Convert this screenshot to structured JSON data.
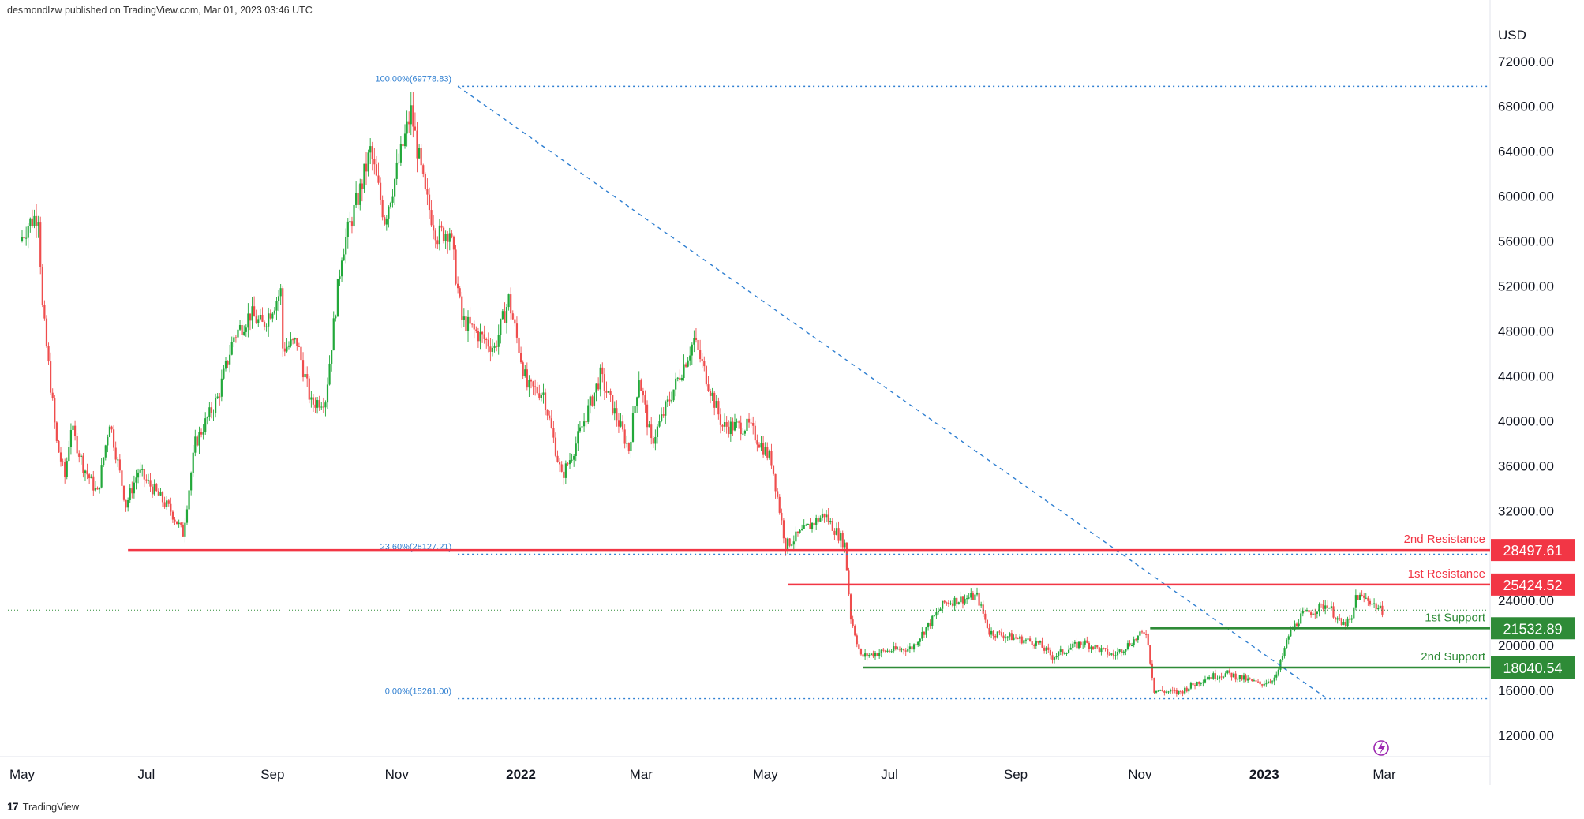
{
  "header": {
    "published_note": "desmondlzw published on TradingView.com, Mar 01, 2023 03:46 UTC"
  },
  "footer": {
    "brand": "TradingView",
    "logo_text": "17"
  },
  "colors": {
    "up": "#22a83a",
    "down": "#ef4d4d",
    "resistance": "#f23645",
    "support": "#2e8b37",
    "fib": "#2f7fd1",
    "last_price_line": "#2e8b37"
  },
  "chart_data": {
    "type": "candlestick",
    "currency": "USD",
    "y_axis": {
      "min": 10000,
      "max": 74000,
      "ticks": [
        "72000.00",
        "68000.00",
        "64000.00",
        "60000.00",
        "56000.00",
        "52000.00",
        "48000.00",
        "44000.00",
        "40000.00",
        "36000.00",
        "32000.00",
        "28000.00",
        "24000.00",
        "20000.00",
        "16000.00",
        "12000.00"
      ]
    },
    "x_axis": {
      "labels": [
        {
          "text": "May",
          "date": "2021-05-01"
        },
        {
          "text": "Jul",
          "date": "2021-07-01"
        },
        {
          "text": "Sep",
          "date": "2021-09-01"
        },
        {
          "text": "Nov",
          "date": "2021-11-01"
        },
        {
          "text": "2022",
          "date": "2022-01-01"
        },
        {
          "text": "Mar",
          "date": "2022-03-01"
        },
        {
          "text": "May",
          "date": "2022-05-01"
        },
        {
          "text": "Jul",
          "date": "2022-07-01"
        },
        {
          "text": "Sep",
          "date": "2022-09-01"
        },
        {
          "text": "Nov",
          "date": "2022-11-01"
        },
        {
          "text": "2023",
          "date": "2023-01-01"
        },
        {
          "text": "Mar",
          "date": "2023-03-01"
        }
      ]
    },
    "price_path": [
      [
        "2021-05-01",
        56000
      ],
      [
        "2021-05-05",
        57500
      ],
      [
        "2021-05-10",
        58500
      ],
      [
        "2021-05-12",
        50000
      ],
      [
        "2021-05-19",
        38000
      ],
      [
        "2021-05-23",
        35000
      ],
      [
        "2021-05-26",
        39500
      ],
      [
        "2021-06-01",
        36000
      ],
      [
        "2021-06-08",
        33500
      ],
      [
        "2021-06-14",
        40000
      ],
      [
        "2021-06-22",
        32500
      ],
      [
        "2021-06-28",
        35500
      ],
      [
        "2021-07-05",
        34000
      ],
      [
        "2021-07-14",
        32000
      ],
      [
        "2021-07-20",
        30000
      ],
      [
        "2021-07-26",
        38000
      ],
      [
        "2021-08-06",
        42000
      ],
      [
        "2021-08-14",
        47500
      ],
      [
        "2021-08-22",
        49500
      ],
      [
        "2021-08-28",
        48500
      ],
      [
        "2021-09-06",
        51500
      ],
      [
        "2021-09-07",
        46500
      ],
      [
        "2021-09-14",
        47000
      ],
      [
        "2021-09-21",
        41500
      ],
      [
        "2021-09-28",
        42000
      ],
      [
        "2021-10-06",
        55000
      ],
      [
        "2021-10-15",
        60500
      ],
      [
        "2021-10-20",
        64000
      ],
      [
        "2021-10-27",
        58000
      ],
      [
        "2021-11-01",
        61500
      ],
      [
        "2021-11-09",
        67500
      ],
      [
        "2021-11-16",
        60000
      ],
      [
        "2021-11-22",
        56500
      ],
      [
        "2021-11-28",
        57000
      ],
      [
        "2021-12-04",
        49000
      ],
      [
        "2021-12-10",
        48000
      ],
      [
        "2021-12-20",
        46500
      ],
      [
        "2021-12-27",
        50800
      ],
      [
        "2022-01-05",
        43000
      ],
      [
        "2022-01-13",
        42500
      ],
      [
        "2022-01-22",
        35000
      ],
      [
        "2022-01-27",
        37000
      ],
      [
        "2022-02-10",
        44000
      ],
      [
        "2022-02-24",
        37500
      ],
      [
        "2022-03-01",
        44000
      ],
      [
        "2022-03-07",
        38000
      ],
      [
        "2022-03-28",
        47200
      ],
      [
        "2022-04-11",
        39500
      ],
      [
        "2022-04-24",
        39500
      ],
      [
        "2022-05-05",
        36500
      ],
      [
        "2022-05-10",
        31000
      ],
      [
        "2022-05-12",
        28900
      ],
      [
        "2022-05-31",
        31700
      ],
      [
        "2022-06-10",
        29000
      ],
      [
        "2022-06-13",
        22500
      ],
      [
        "2022-06-18",
        19000
      ],
      [
        "2022-06-30",
        19500
      ],
      [
        "2022-07-13",
        19800
      ],
      [
        "2022-07-29",
        23800
      ],
      [
        "2022-08-14",
        24400
      ],
      [
        "2022-08-20",
        21200
      ],
      [
        "2022-09-13",
        20200
      ],
      [
        "2022-09-20",
        19000
      ],
      [
        "2022-10-05",
        20300
      ],
      [
        "2022-10-20",
        19100
      ],
      [
        "2022-11-05",
        21300
      ],
      [
        "2022-11-09",
        16000
      ],
      [
        "2022-11-21",
        15800
      ],
      [
        "2022-12-05",
        17200
      ],
      [
        "2022-12-15",
        17500
      ],
      [
        "2022-12-31",
        16550
      ],
      [
        "2023-01-08",
        17200
      ],
      [
        "2023-01-14",
        20900
      ],
      [
        "2023-01-20",
        22600
      ],
      [
        "2023-02-02",
        23700
      ],
      [
        "2023-02-09",
        21800
      ],
      [
        "2023-02-14",
        22200
      ],
      [
        "2023-02-16",
        24400
      ],
      [
        "2023-02-22",
        24100
      ],
      [
        "2023-02-28",
        23150
      ]
    ],
    "fib_levels": [
      {
        "label": "100.00%(69778.83)",
        "value": 69778.83
      },
      {
        "label": "23.60%(28127.21)",
        "value": 28127.21
      },
      {
        "label": "0.00%(15261.00)",
        "value": 15261.0
      }
    ],
    "fib_trendline": [
      {
        "date": "2021-12-01",
        "value": 69778.83
      },
      {
        "date": "2023-02-01",
        "value": 15261.0
      }
    ],
    "levels": [
      {
        "name": "2nd Resistance",
        "price": "28497.61",
        "value": 28497.61,
        "kind": "resistance",
        "start": "2021-06-22"
      },
      {
        "name": "1st Resistance",
        "price": "25424.52",
        "value": 25424.52,
        "kind": "resistance",
        "start": "2022-05-12"
      },
      {
        "name": "1st Support",
        "price": "21532.89",
        "value": 21532.89,
        "kind": "support",
        "start": "2022-11-06"
      },
      {
        "name": "2nd Support",
        "price": "18040.54",
        "value": 18040.54,
        "kind": "support",
        "start": "2022-06-18"
      }
    ],
    "last_price": 23150
  }
}
